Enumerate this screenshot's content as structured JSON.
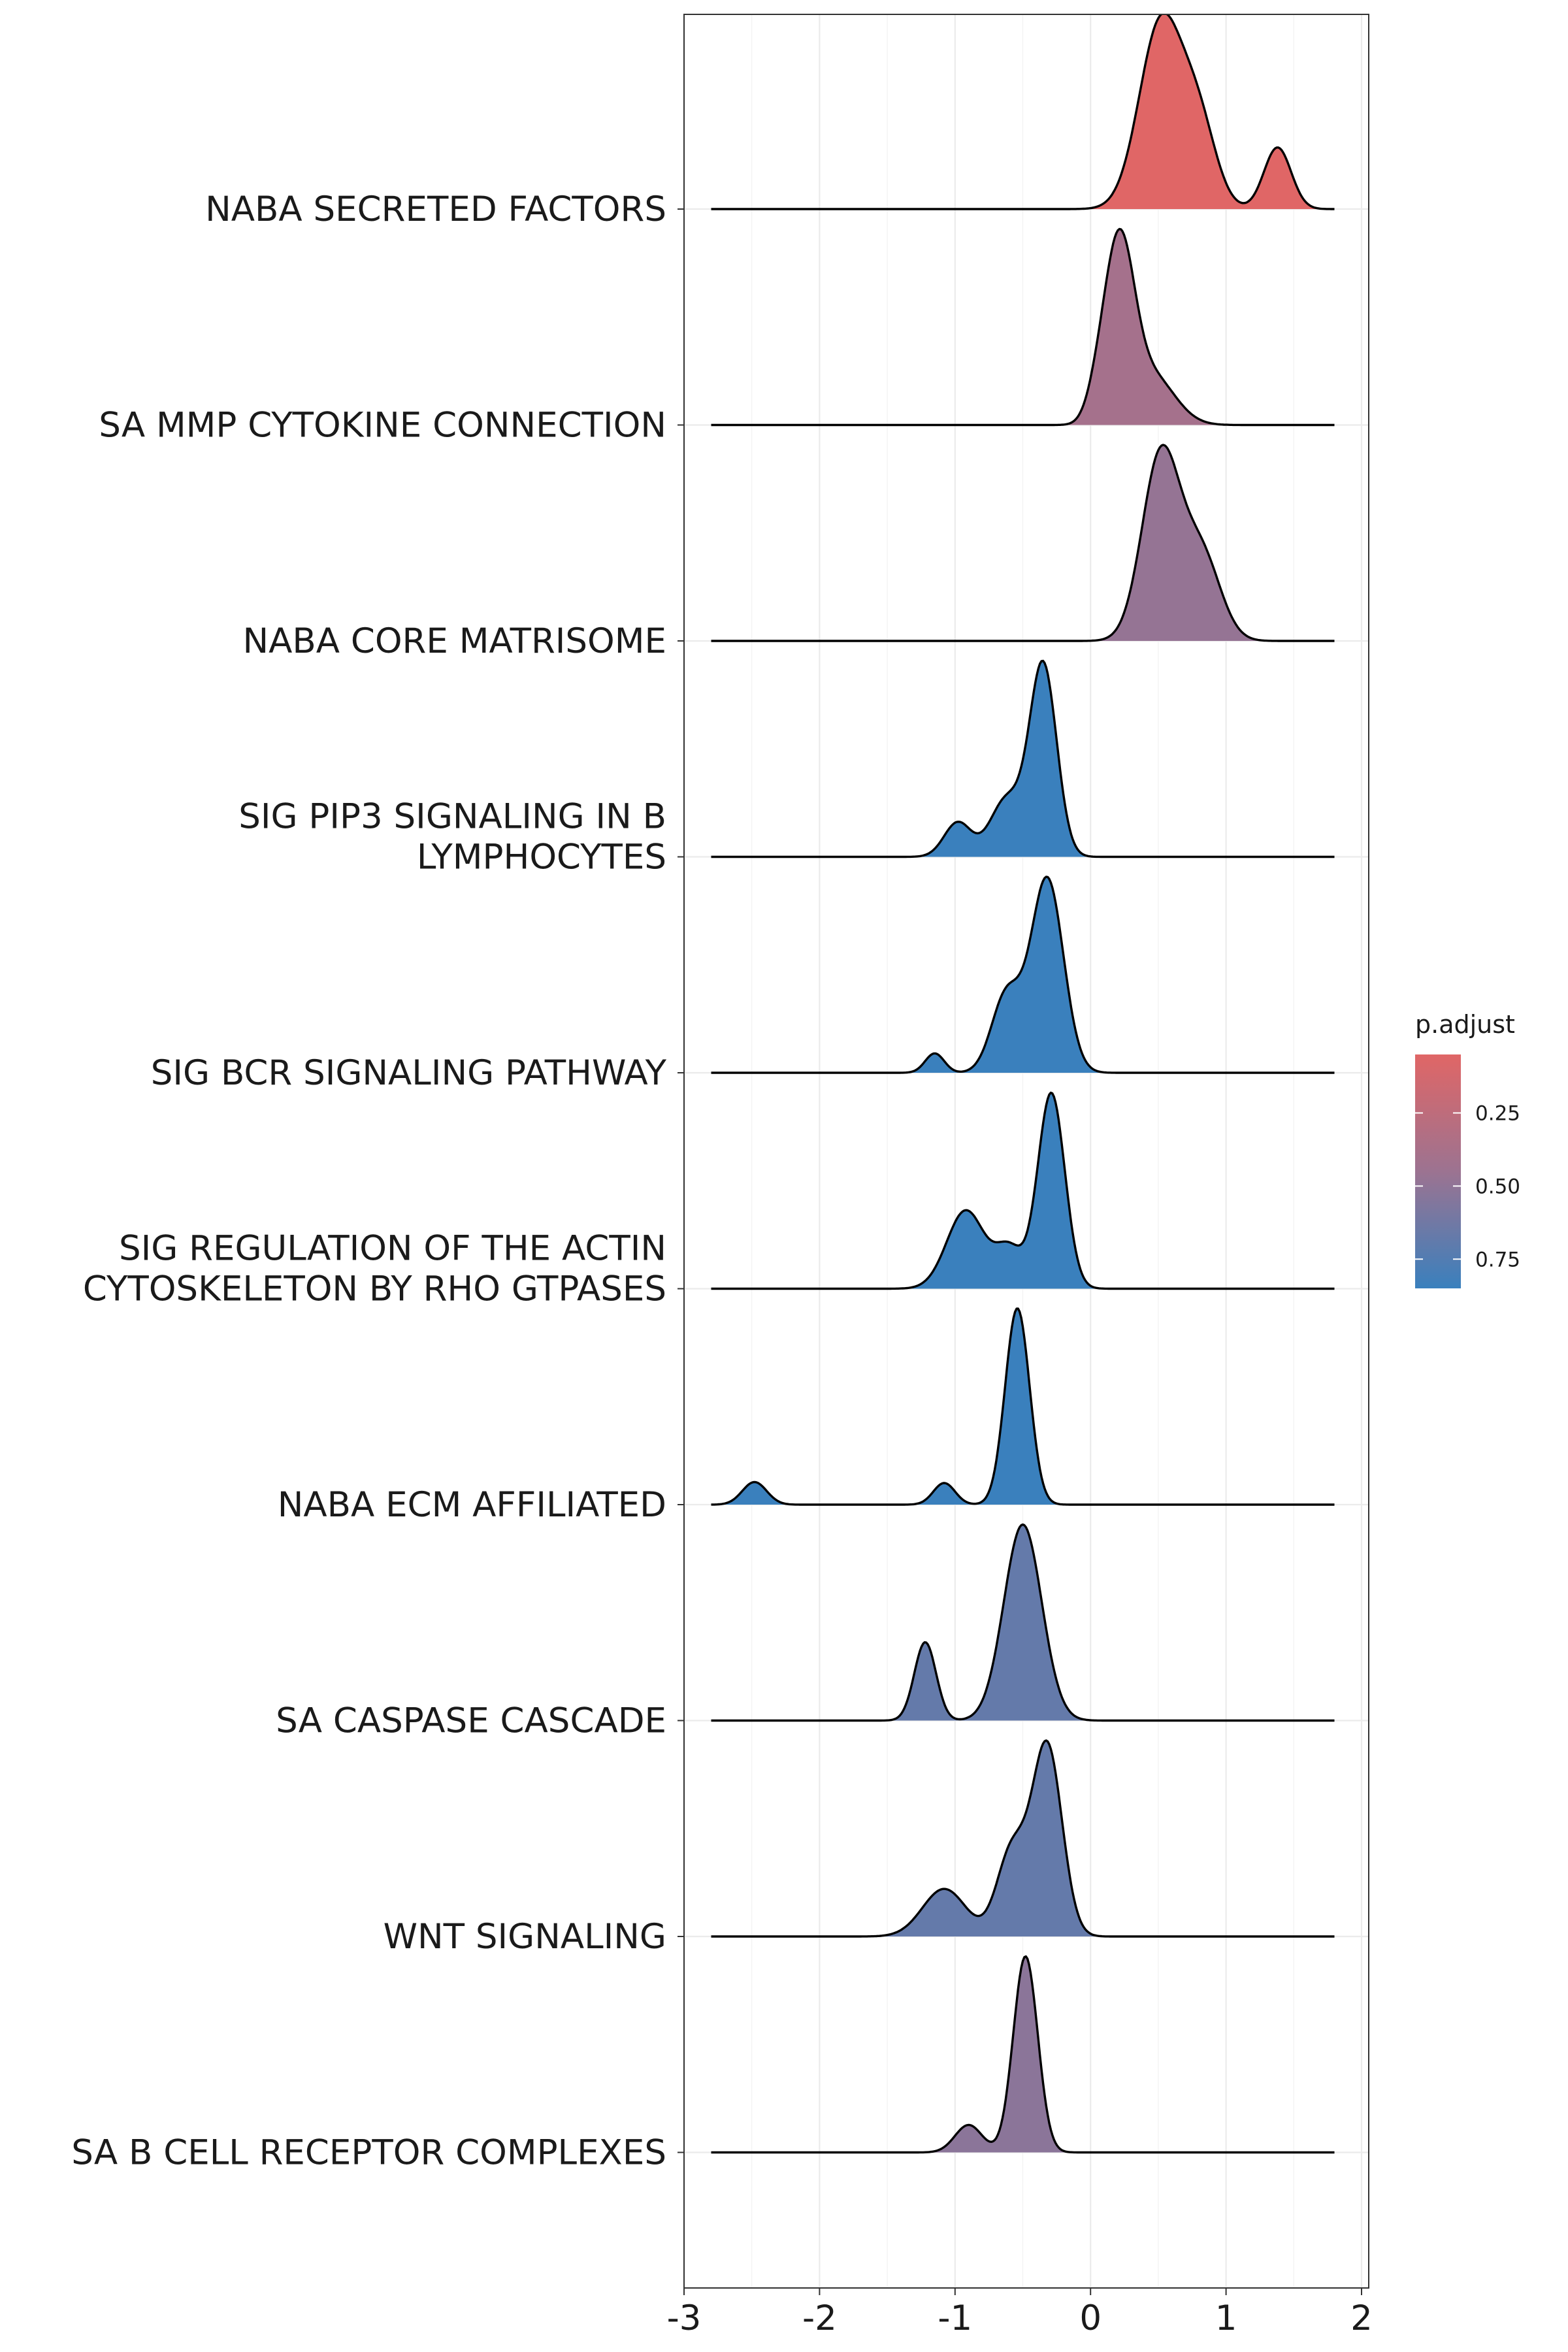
{
  "chart_data": {
    "type": "ridgeline",
    "title": "",
    "xlabel": "",
    "ylabel": "",
    "xlim": [
      -3.0,
      2.0
    ],
    "x_ticks": [
      -3,
      -2,
      -1,
      0,
      1,
      2
    ],
    "x_tick_labels": [
      "-3",
      "-2",
      "-1",
      "0",
      "1",
      "2"
    ],
    "grid": true,
    "legend": {
      "title": "p.adjust",
      "placement": "right",
      "type": "continuous-colorbar",
      "range": [
        0.05,
        0.85
      ],
      "ticks": [
        0.25,
        0.5,
        0.75
      ],
      "tick_labels": [
        "0.25",
        "0.50",
        "0.75"
      ],
      "low_color": "#e06666",
      "high_color": "#3a80bd"
    },
    "series": [
      {
        "label_lines": [
          "NABA SECRETED FACTORS"
        ],
        "p_adjust": 0.05,
        "components": [
          {
            "mu": 0.52,
            "sd": 0.16,
            "w": 1.0
          },
          {
            "mu": 0.8,
            "sd": 0.13,
            "w": 0.42
          },
          {
            "mu": 1.38,
            "sd": 0.1,
            "w": 0.33
          }
        ],
        "x_range": [
          -2.8,
          1.8
        ]
      },
      {
        "label_lines": [
          "SA MMP CYTOKINE CONNECTION"
        ],
        "p_adjust": 0.4,
        "components": [
          {
            "mu": 0.21,
            "sd": 0.11,
            "w": 1.0
          },
          {
            "mu": 0.45,
            "sd": 0.17,
            "w": 0.28
          },
          {
            "mu": 0.05,
            "sd": 0.08,
            "w": 0.12
          }
        ],
        "x_range": [
          -2.8,
          1.8
        ]
      },
      {
        "label_lines": [
          "NABA CORE MATRISOME"
        ],
        "p_adjust": 0.48,
        "components": [
          {
            "mu": 0.52,
            "sd": 0.14,
            "w": 1.0
          },
          {
            "mu": 0.82,
            "sd": 0.14,
            "w": 0.45
          }
        ],
        "x_range": [
          -2.8,
          1.8
        ]
      },
      {
        "label_lines": [
          "SIG PIP3 SIGNALING IN B",
          "LYMPHOCYTES"
        ],
        "p_adjust": 0.85,
        "components": [
          {
            "mu": -0.35,
            "sd": 0.1,
            "w": 1.0
          },
          {
            "mu": -0.62,
            "sd": 0.12,
            "w": 0.3
          },
          {
            "mu": -0.98,
            "sd": 0.1,
            "w": 0.18
          }
        ],
        "x_range": [
          -2.8,
          1.8
        ]
      },
      {
        "label_lines": [
          "SIG BCR SIGNALING PATHWAY"
        ],
        "p_adjust": 0.85,
        "components": [
          {
            "mu": -0.32,
            "sd": 0.12,
            "w": 1.0
          },
          {
            "mu": -0.62,
            "sd": 0.11,
            "w": 0.4
          },
          {
            "mu": -1.15,
            "sd": 0.07,
            "w": 0.1
          }
        ],
        "x_range": [
          -2.8,
          1.8
        ]
      },
      {
        "label_lines": [
          "SIG REGULATION OF THE ACTIN",
          "CYTOSKELETON BY RHO GTPASES"
        ],
        "p_adjust": 0.85,
        "components": [
          {
            "mu": -0.29,
            "sd": 0.1,
            "w": 1.0
          },
          {
            "mu": -0.92,
            "sd": 0.14,
            "w": 0.4
          },
          {
            "mu": -0.6,
            "sd": 0.1,
            "w": 0.2
          }
        ],
        "x_range": [
          -2.8,
          1.8
        ]
      },
      {
        "label_lines": [
          "NABA ECM AFFILIATED"
        ],
        "p_adjust": 0.85,
        "components": [
          {
            "mu": -0.54,
            "sd": 0.09,
            "w": 1.0
          },
          {
            "mu": -1.08,
            "sd": 0.08,
            "w": 0.11
          },
          {
            "mu": -2.48,
            "sd": 0.09,
            "w": 0.115
          }
        ],
        "x_range": [
          -2.8,
          1.8
        ]
      },
      {
        "label_lines": [
          "SA CASPASE CASCADE"
        ],
        "p_adjust": 0.68,
        "components": [
          {
            "mu": -0.5,
            "sd": 0.14,
            "w": 1.0
          },
          {
            "mu": -1.22,
            "sd": 0.08,
            "w": 0.4
          }
        ],
        "x_range": [
          -2.8,
          1.8
        ]
      },
      {
        "label_lines": [
          "WNT SIGNALING"
        ],
        "p_adjust": 0.68,
        "components": [
          {
            "mu": -0.32,
            "sd": 0.11,
            "w": 1.0
          },
          {
            "mu": -0.58,
            "sd": 0.11,
            "w": 0.45
          },
          {
            "mu": -1.08,
            "sd": 0.16,
            "w": 0.25
          }
        ],
        "x_range": [
          -2.8,
          1.8
        ]
      },
      {
        "label_lines": [
          "SA B CELL RECEPTOR COMPLEXES"
        ],
        "p_adjust": 0.52,
        "components": [
          {
            "mu": -0.48,
            "sd": 0.09,
            "w": 1.0
          },
          {
            "mu": -0.9,
            "sd": 0.1,
            "w": 0.14
          }
        ],
        "x_range": [
          -2.8,
          1.8
        ]
      }
    ]
  }
}
